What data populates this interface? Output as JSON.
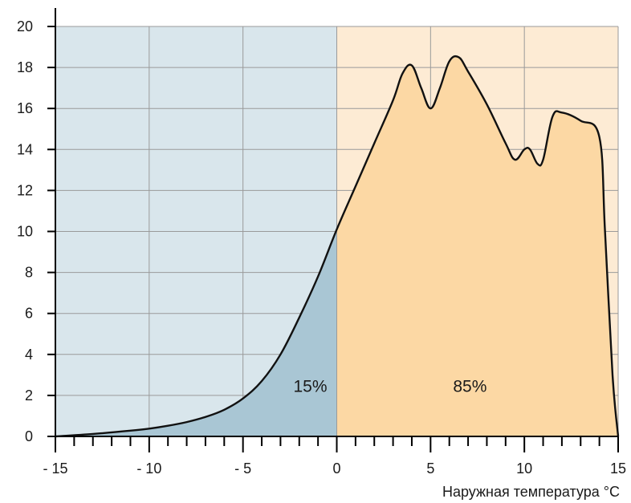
{
  "chart_data": {
    "type": "area",
    "xlabel": "Наружная температура °C",
    "ylabel": "",
    "xlim": [
      -15,
      15
    ],
    "ylim": [
      0,
      20
    ],
    "x_ticks": [
      -15,
      -10,
      -5,
      0,
      5,
      10,
      15
    ],
    "x_tick_labels": [
      "- 15",
      "- 10",
      "- 5",
      "0",
      "5",
      "10",
      "15"
    ],
    "y_ticks": [
      0,
      2,
      4,
      6,
      8,
      10,
      12,
      14,
      16,
      18,
      20
    ],
    "y_tick_labels": [
      "0",
      "2",
      "4",
      "6",
      "8",
      "10",
      "12",
      "14",
      "16",
      "18",
      "20"
    ],
    "minor_x_step": 1,
    "grid": true,
    "split_x": 0,
    "regions": [
      {
        "label": "15%",
        "x_range": [
          -15,
          0
        ],
        "background_color": "#d9e6ec",
        "fill_color": "#a9c6d4"
      },
      {
        "label": "85%",
        "x_range": [
          0,
          15
        ],
        "background_color": "#fdebd4",
        "fill_color": "#fcd8a4"
      }
    ],
    "series": [
      {
        "x": [
          -15,
          -13,
          -11,
          -10,
          -9,
          -8,
          -7,
          -6,
          -5,
          -4,
          -3,
          -2,
          -1,
          0,
          1,
          2,
          3,
          3.5,
          4,
          4.5,
          5,
          5.5,
          6,
          6.5,
          7,
          8,
          9,
          9.5,
          10,
          10.3,
          10.7,
          11,
          11.5,
          12,
          13,
          14,
          14.3,
          14.7,
          15
        ],
        "y": [
          0,
          0.12,
          0.28,
          0.38,
          0.52,
          0.7,
          0.95,
          1.3,
          1.85,
          2.7,
          4.0,
          5.8,
          7.8,
          10.1,
          12.2,
          14.3,
          16.4,
          17.7,
          18.1,
          17.0,
          16.0,
          17.0,
          18.3,
          18.5,
          17.8,
          16.2,
          14.3,
          13.5,
          14.0,
          14.0,
          13.3,
          13.5,
          15.6,
          15.8,
          15.4,
          14.6,
          10.0,
          3.0,
          0
        ]
      }
    ]
  }
}
